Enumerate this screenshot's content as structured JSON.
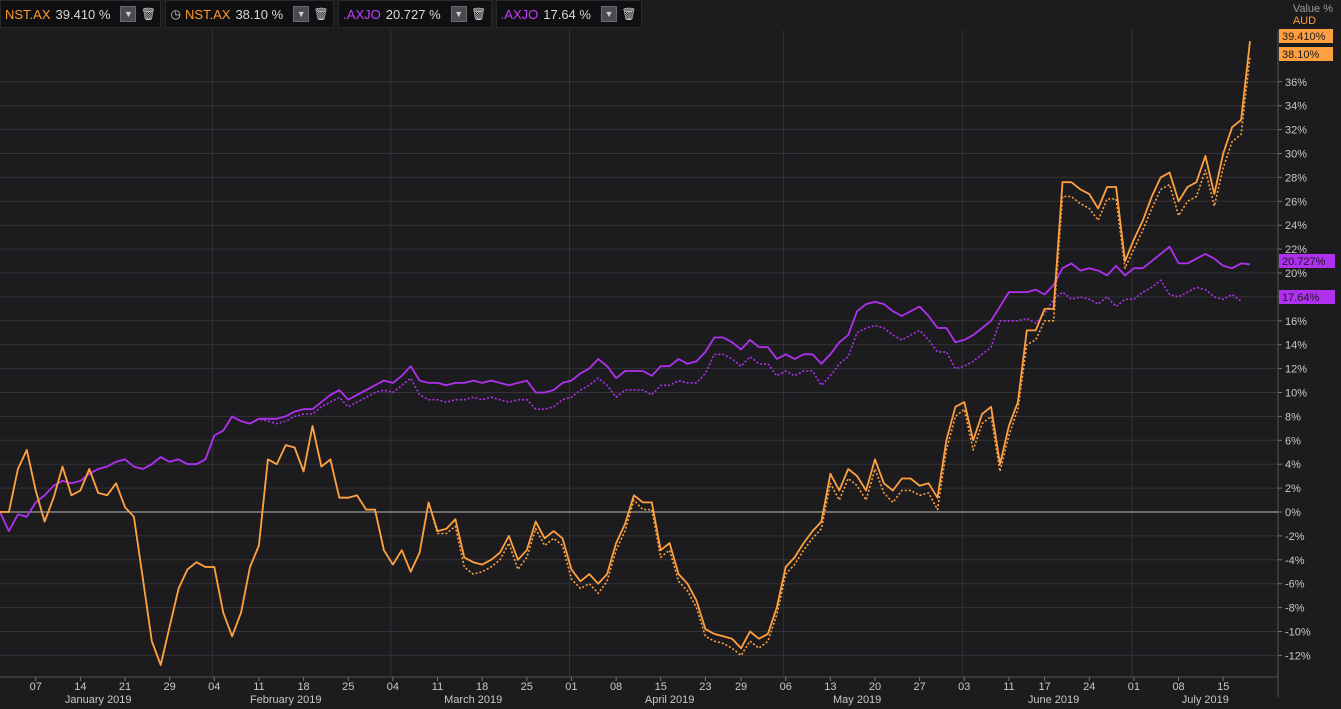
{
  "legend": [
    {
      "symbol": "NST.AX",
      "value": "39.410 %",
      "color": "#ff9a2e",
      "clock": false
    },
    {
      "symbol": "NST.AX",
      "value": "38.10 %",
      "color": "#ff9a2e",
      "clock": true
    },
    {
      "symbol": ".AXJO",
      "value": "20.727 %",
      "color": "#c040ff",
      "clock": false
    },
    {
      "symbol": ".AXJO",
      "value": "17.64 %",
      "color": "#c040ff",
      "clock": false
    }
  ],
  "axis_header": {
    "title": "Value %",
    "currency": "AUD"
  },
  "colors": {
    "nst": "#ffa040",
    "axjo": "#b030f0",
    "background": "#1c1c1f",
    "grid": "#333338",
    "zero_line": "#9a9a9a"
  },
  "chart_data": {
    "type": "line",
    "title": "",
    "ylabel": "Value %",
    "ylim": [
      -13,
      40
    ],
    "grid": true,
    "y_ticks": [
      -12,
      -10,
      -8,
      -6,
      -4,
      -2,
      0,
      2,
      4,
      6,
      8,
      10,
      12,
      14,
      16,
      18,
      20,
      22,
      24,
      26,
      28,
      30,
      32,
      34,
      36
    ],
    "y_tick_labels": [
      "-12%",
      "-10%",
      "-8%",
      "-6%",
      "-4%",
      "-2%",
      "0%",
      "2%",
      "4%",
      "6%",
      "8%",
      "10%",
      "12%",
      "14%",
      "16%",
      "18%",
      "20%",
      "22%",
      "24%",
      "26%",
      "28%",
      "30%",
      "32%",
      "34%",
      "36%"
    ],
    "x_ticks": [
      {
        "label": "07",
        "i": 4
      },
      {
        "label": "14",
        "i": 9
      },
      {
        "label": "21",
        "i": 14
      },
      {
        "label": "29",
        "i": 19
      },
      {
        "label": "04",
        "i": 24
      },
      {
        "label": "11",
        "i": 29
      },
      {
        "label": "18",
        "i": 34
      },
      {
        "label": "25",
        "i": 39
      },
      {
        "label": "04",
        "i": 44
      },
      {
        "label": "11",
        "i": 49
      },
      {
        "label": "18",
        "i": 54
      },
      {
        "label": "25",
        "i": 59
      },
      {
        "label": "01",
        "i": 64
      },
      {
        "label": "08",
        "i": 69
      },
      {
        "label": "15",
        "i": 74
      },
      {
        "label": "23",
        "i": 79
      },
      {
        "label": "29",
        "i": 83
      },
      {
        "label": "06",
        "i": 88
      },
      {
        "label": "13",
        "i": 93
      },
      {
        "label": "20",
        "i": 98
      },
      {
        "label": "27",
        "i": 103
      },
      {
        "label": "03",
        "i": 108
      },
      {
        "label": "11",
        "i": 113
      },
      {
        "label": "17",
        "i": 117
      },
      {
        "label": "24",
        "i": 122
      },
      {
        "label": "01",
        "i": 127
      },
      {
        "label": "08",
        "i": 132
      },
      {
        "label": "15",
        "i": 137
      }
    ],
    "month_labels": [
      {
        "label": "January 2019",
        "i": 11
      },
      {
        "label": "February 2019",
        "i": 32
      },
      {
        "label": "March 2019",
        "i": 53
      },
      {
        "label": "April 2019",
        "i": 75
      },
      {
        "label": "May 2019",
        "i": 96
      },
      {
        "label": "June 2019",
        "i": 118
      },
      {
        "label": "July 2019",
        "i": 135
      }
    ],
    "series": [
      {
        "name": "NST.AX",
        "key": "nst",
        "style": "solid",
        "end_label": "39.410%",
        "values": [
          0,
          0,
          3.6,
          5.2,
          1.8,
          -0.8,
          1.2,
          3.8,
          1.4,
          1.8,
          3.6,
          1.6,
          1.4,
          2.4,
          0.4,
          -0.4,
          -5.6,
          -10.8,
          -12.8,
          -9.6,
          -6.4,
          -4.8,
          -4.2,
          -4.6,
          -4.6,
          -8.4,
          -10.4,
          -8.4,
          -4.6,
          -2.8,
          4.4,
          4.0,
          5.6,
          5.4,
          3.4,
          7.2,
          3.8,
          4.4,
          1.2,
          1.2,
          1.4,
          0.2,
          0.2,
          -3.2,
          -4.4,
          -3.2,
          -5.0,
          -3.4,
          0.8,
          -1.6,
          -1.4,
          -0.6,
          -3.8,
          -4.2,
          -4.4,
          -4.0,
          -3.4,
          -2.0,
          -4.0,
          -3.2,
          -0.8,
          -2.2,
          -1.6,
          -2.2,
          -4.8,
          -5.8,
          -5.2,
          -6.0,
          -5.2,
          -2.6,
          -1.0,
          1.4,
          0.8,
          0.8,
          -3.2,
          -2.6,
          -5.2,
          -6.0,
          -7.4,
          -9.8,
          -10.2,
          -10.4,
          -10.6,
          -11.4,
          -10.0,
          -10.6,
          -10.2,
          -8.0,
          -4.6,
          -3.8,
          -2.6,
          -1.6,
          -0.8,
          3.2,
          1.8,
          3.6,
          3.0,
          1.8,
          4.4,
          2.4,
          1.8,
          2.8,
          2.8,
          2.2,
          2.4,
          1.2,
          6.0,
          8.8,
          9.2,
          6.0,
          8.2,
          8.8,
          4.0,
          7.2,
          9.2,
          15.2,
          15.2,
          17.0,
          17.0,
          27.6,
          27.6,
          27.0,
          26.6,
          25.4,
          27.2,
          27.2,
          21.0,
          22.8,
          24.4,
          26.4,
          28.0,
          28.4,
          26.0,
          27.2,
          27.6,
          29.8,
          26.6,
          30.0,
          32.2,
          32.8,
          39.41
        ]
      },
      {
        "name": "NST.AX",
        "key": "nst",
        "style": "dotted",
        "end_label": "38.10%",
        "values": [
          0,
          0,
          3.6,
          5.2,
          1.8,
          -0.8,
          1.2,
          3.8,
          1.4,
          1.8,
          3.6,
          1.6,
          1.4,
          2.4,
          0.4,
          -0.4,
          -5.6,
          -10.8,
          -12.8,
          -9.6,
          -6.4,
          -4.8,
          -4.2,
          -4.6,
          -4.6,
          -8.4,
          -10.4,
          -8.4,
          -4.6,
          -2.8,
          4.4,
          4.0,
          5.6,
          5.4,
          3.4,
          7.2,
          3.8,
          4.4,
          1.2,
          1.2,
          1.4,
          0.2,
          0.2,
          -3.2,
          -4.4,
          -3.2,
          -5.0,
          -3.4,
          0.8,
          -1.8,
          -1.8,
          -1.2,
          -4.6,
          -5.2,
          -5.0,
          -4.6,
          -4.0,
          -2.6,
          -4.8,
          -3.8,
          -1.4,
          -2.8,
          -2.2,
          -2.8,
          -5.6,
          -6.4,
          -6.0,
          -6.8,
          -5.8,
          -3.2,
          -1.6,
          1.0,
          0.2,
          0.2,
          -3.8,
          -3.2,
          -5.8,
          -6.6,
          -8.0,
          -10.4,
          -10.8,
          -11.0,
          -11.4,
          -12.0,
          -10.8,
          -11.4,
          -10.8,
          -8.6,
          -5.2,
          -4.4,
          -3.2,
          -2.2,
          -1.4,
          2.4,
          1.0,
          2.8,
          2.2,
          1.0,
          3.6,
          1.6,
          0.8,
          1.8,
          1.8,
          1.4,
          1.6,
          0.2,
          5.2,
          8.0,
          8.6,
          5.2,
          7.4,
          8.0,
          3.4,
          6.4,
          8.6,
          14.0,
          14.4,
          16.0,
          16.0,
          26.4,
          26.4,
          25.8,
          25.4,
          24.4,
          26.2,
          26.2,
          20.4,
          22.0,
          23.6,
          25.4,
          27.0,
          27.4,
          24.8,
          26.0,
          26.4,
          28.6,
          25.6,
          28.8,
          31.0,
          31.6,
          38.1
        ]
      },
      {
        "name": ".AXJO",
        "key": "axjo",
        "style": "solid",
        "end_label": "20.727%",
        "values": [
          0,
          -1.6,
          -0.2,
          -0.4,
          0.8,
          1.4,
          2.2,
          2.6,
          2.4,
          2.6,
          3.2,
          3.6,
          3.8,
          4.2,
          4.4,
          3.8,
          3.6,
          4.0,
          4.6,
          4.2,
          4.4,
          4.0,
          4.0,
          4.4,
          6.4,
          6.8,
          8.0,
          7.6,
          7.4,
          7.8,
          7.8,
          7.8,
          8.0,
          8.4,
          8.6,
          8.6,
          9.2,
          9.8,
          10.2,
          9.4,
          9.8,
          10.2,
          10.6,
          11.0,
          10.8,
          11.4,
          12.2,
          11.0,
          10.8,
          10.8,
          10.6,
          10.8,
          10.8,
          11.0,
          10.8,
          11.0,
          10.8,
          10.6,
          10.8,
          11.0,
          10.0,
          10.0,
          10.2,
          10.8,
          11.0,
          11.6,
          12.0,
          12.8,
          12.2,
          11.2,
          11.8,
          11.8,
          11.8,
          11.4,
          12.2,
          12.2,
          12.8,
          12.4,
          12.6,
          13.4,
          14.6,
          14.6,
          14.2,
          13.6,
          14.4,
          13.8,
          13.8,
          12.8,
          13.2,
          12.8,
          13.2,
          13.2,
          12.4,
          13.2,
          14.2,
          14.8,
          16.8,
          17.4,
          17.6,
          17.4,
          16.8,
          16.4,
          16.8,
          17.2,
          16.4,
          15.4,
          15.4,
          14.2,
          14.4,
          14.8,
          15.4,
          16.0,
          17.2,
          18.4,
          18.4,
          18.4,
          18.6,
          18.2,
          19.0,
          20.4,
          20.8,
          20.2,
          20.4,
          20.2,
          19.8,
          20.6,
          19.8,
          20.4,
          20.4,
          21.0,
          21.6,
          22.2,
          20.8,
          20.8,
          21.2,
          21.6,
          21.2,
          20.6,
          20.4,
          20.8,
          20.727
        ]
      },
      {
        "name": ".AXJO",
        "key": "axjo",
        "style": "dotted",
        "end_label": "17.64%",
        "values": [
          0,
          -1.6,
          -0.2,
          -0.4,
          0.8,
          1.4,
          2.2,
          2.6,
          2.4,
          2.6,
          3.2,
          3.6,
          3.8,
          4.2,
          4.4,
          3.8,
          3.6,
          4.0,
          4.6,
          4.2,
          4.4,
          4.0,
          4.0,
          4.4,
          6.4,
          6.8,
          8.0,
          7.6,
          7.4,
          7.8,
          7.6,
          7.4,
          7.6,
          8.0,
          8.2,
          8.2,
          8.8,
          9.2,
          9.6,
          8.8,
          9.2,
          9.6,
          10.0,
          10.2,
          10.0,
          10.6,
          11.2,
          9.8,
          9.4,
          9.4,
          9.2,
          9.4,
          9.4,
          9.6,
          9.4,
          9.6,
          9.4,
          9.2,
          9.4,
          9.4,
          8.6,
          8.6,
          8.8,
          9.4,
          9.6,
          10.2,
          10.6,
          11.2,
          10.6,
          9.6,
          10.2,
          10.2,
          10.2,
          9.8,
          10.6,
          10.6,
          11.0,
          10.8,
          10.8,
          11.6,
          13.2,
          13.2,
          12.8,
          12.2,
          13.0,
          12.4,
          12.4,
          11.4,
          11.8,
          11.4,
          11.8,
          11.8,
          10.6,
          11.4,
          12.4,
          13.0,
          15.0,
          15.4,
          15.6,
          15.4,
          14.8,
          14.4,
          14.8,
          15.2,
          14.4,
          13.4,
          13.4,
          12.0,
          12.2,
          12.6,
          13.2,
          13.8,
          16.0,
          16.0,
          16.0,
          16.2,
          15.8,
          16.6,
          17.8,
          18.4,
          17.8,
          18.0,
          17.8,
          17.4,
          18.0,
          17.2,
          17.8,
          17.8,
          18.4,
          18.8,
          19.4,
          18.2,
          18.0,
          18.4,
          18.8,
          18.6,
          18.0,
          17.8,
          18.2,
          17.64
        ]
      }
    ]
  }
}
